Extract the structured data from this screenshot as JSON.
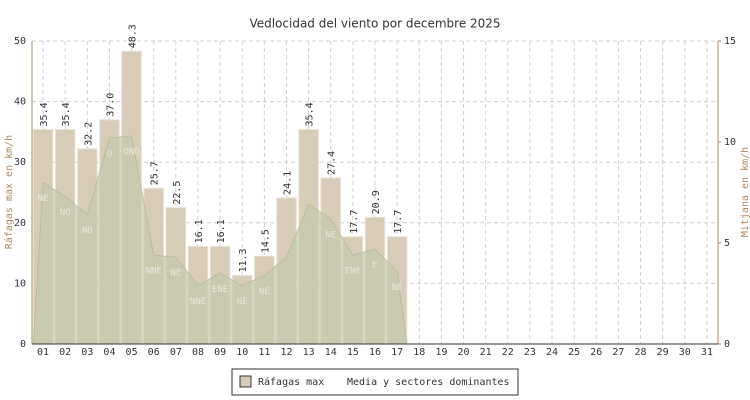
{
  "chart_data": {
    "type": "bar",
    "title": "Vedlocidad del viento por decembre 2025",
    "ylabel": "Ráfagas max en km/h",
    "y2label": "Mitjana en km/h",
    "categories": [
      "01",
      "02",
      "03",
      "04",
      "05",
      "06",
      "07",
      "08",
      "09",
      "10",
      "11",
      "12",
      "13",
      "14",
      "15",
      "16",
      "17",
      "18",
      "19",
      "20",
      "21",
      "22",
      "23",
      "24",
      "25",
      "26",
      "27",
      "28",
      "29",
      "30",
      "31"
    ],
    "series": [
      {
        "name": "Ráfagas max",
        "type": "bar",
        "color": "#d8ccb8",
        "values": [
          35.4,
          35.4,
          32.2,
          37.0,
          48.3,
          25.7,
          22.5,
          16.1,
          16.1,
          11.3,
          14.5,
          24.1,
          35.4,
          27.4,
          17.7,
          20.9,
          17.7,
          null,
          null,
          null,
          null,
          null,
          null,
          null,
          null,
          null,
          null,
          null,
          null,
          null,
          null
        ],
        "value_labels": [
          "35.4",
          "35.4",
          "32.2",
          "37.0",
          "48.3",
          "25.7",
          "22.5",
          "16.1",
          "16.1",
          "11.3",
          "14.5",
          "24.1",
          "35.4",
          "27.4",
          "17.7",
          "20.9",
          "17.7",
          null,
          null,
          null,
          null,
          null,
          null,
          null,
          null,
          null,
          null,
          null,
          null,
          null,
          null
        ]
      },
      {
        "name": "Media y sectores dominantes",
        "type": "area",
        "axis": "y2",
        "color": "#c3c9ad",
        "values": [
          8.0,
          7.3,
          6.4,
          10.2,
          10.3,
          4.4,
          4.3,
          2.9,
          3.5,
          2.9,
          3.4,
          4.3,
          6.9,
          6.2,
          4.4,
          4.7,
          3.6,
          null,
          null,
          null,
          null,
          null,
          null,
          null,
          null,
          null,
          null,
          null,
          null,
          null,
          null
        ],
        "labels": [
          "NE",
          "NO",
          "NO",
          "O",
          "ONO",
          "NNE",
          "NE",
          "NNE",
          "ENE",
          "NE",
          "NE",
          null,
          null,
          "NE",
          "ENE",
          "E",
          "NE",
          null,
          null,
          null,
          null,
          null,
          null,
          null,
          null,
          null,
          null,
          null,
          null,
          null,
          null
        ]
      }
    ],
    "ylim": [
      0,
      50
    ],
    "yticks": [
      0,
      10,
      20,
      30,
      40,
      50
    ],
    "y2lim": [
      0,
      15
    ],
    "y2ticks": [
      0,
      5,
      10,
      15
    ],
    "grid": true
  }
}
